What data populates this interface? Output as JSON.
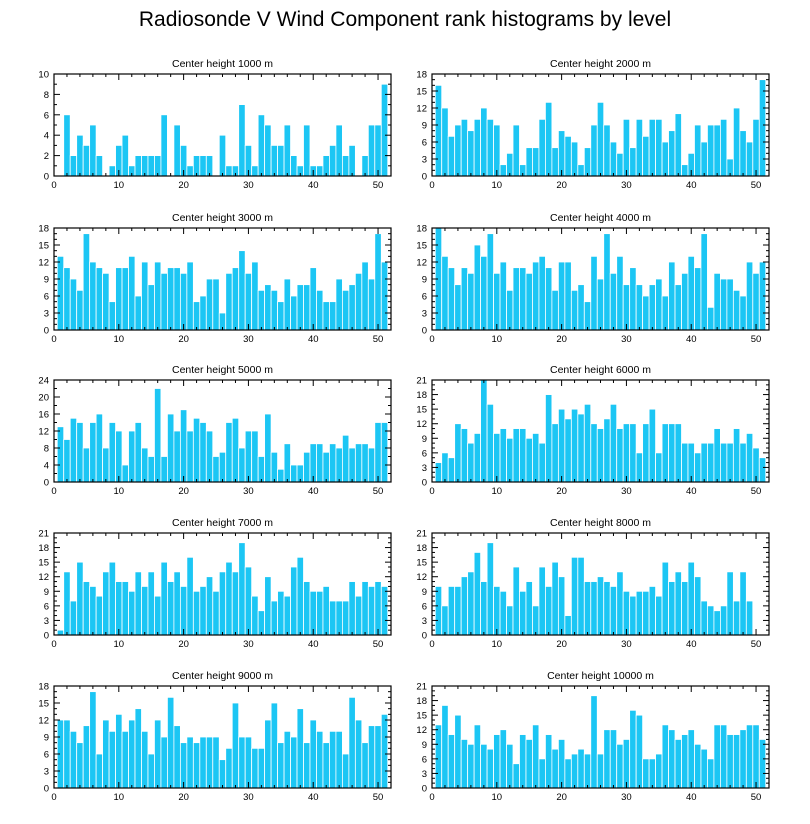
{
  "title": "Radiosonde V Wind Component rank histograms by level",
  "colors": {
    "bar": "#1cc6f4",
    "bar_stroke": "#ffffff",
    "axis": "#000000"
  },
  "chart_data": [
    {
      "type": "bar",
      "title": "Center height 1000 m",
      "xlim": [
        0,
        52
      ],
      "ylim": [
        0,
        10
      ],
      "xticks": [
        0,
        10,
        20,
        30,
        40,
        50
      ],
      "yticks": [
        0,
        2,
        4,
        6,
        8,
        10
      ],
      "values": [
        0,
        0,
        6,
        2,
        4,
        3,
        5,
        2,
        0,
        1,
        3,
        4,
        1,
        2,
        2,
        2,
        2,
        6,
        0,
        5,
        3,
        1,
        2,
        2,
        2,
        0,
        4,
        1,
        1,
        7,
        3,
        1,
        6,
        5,
        3,
        3,
        5,
        2,
        1,
        5,
        1,
        1,
        2,
        3,
        5,
        2,
        3,
        0,
        2,
        5,
        5,
        9
      ]
    },
    {
      "type": "bar",
      "title": "Center height 2000 m",
      "xlim": [
        0,
        52
      ],
      "ylim": [
        0,
        18
      ],
      "xticks": [
        0,
        10,
        20,
        30,
        40,
        50
      ],
      "yticks": [
        0,
        3,
        6,
        9,
        12,
        15,
        18
      ],
      "values": [
        0,
        16,
        12,
        7,
        9,
        10,
        8,
        10,
        12,
        10,
        9,
        2,
        4,
        9,
        2,
        5,
        5,
        10,
        13,
        5,
        8,
        7,
        6,
        2,
        5,
        9,
        13,
        9,
        6,
        4,
        10,
        5,
        10,
        7,
        10,
        10,
        6,
        8,
        11,
        2,
        4,
        9,
        6,
        9,
        9,
        10,
        3,
        12,
        8,
        6,
        10,
        17
      ]
    },
    {
      "type": "bar",
      "title": "Center height 3000 m",
      "xlim": [
        0,
        52
      ],
      "ylim": [
        0,
        18
      ],
      "xticks": [
        0,
        10,
        20,
        30,
        40,
        50
      ],
      "yticks": [
        0,
        3,
        6,
        9,
        12,
        15,
        18
      ],
      "values": [
        0,
        13,
        11,
        9,
        7,
        17,
        12,
        11,
        10,
        5,
        11,
        11,
        13,
        6,
        12,
        8,
        12,
        10,
        11,
        11,
        10,
        12,
        5,
        6,
        9,
        9,
        3,
        10,
        11,
        14,
        10,
        12,
        7,
        8,
        7,
        5,
        9,
        6,
        8,
        8,
        11,
        7,
        5,
        5,
        9,
        7,
        8,
        10,
        12,
        9,
        17,
        12
      ]
    },
    {
      "type": "bar",
      "title": "Center height 4000 m",
      "xlim": [
        0,
        52
      ],
      "ylim": [
        0,
        18
      ],
      "xticks": [
        0,
        10,
        20,
        30,
        40,
        50
      ],
      "yticks": [
        0,
        3,
        6,
        9,
        12,
        15,
        18
      ],
      "values": [
        0,
        18,
        13,
        11,
        8,
        11,
        10,
        15,
        13,
        17,
        10,
        12,
        7,
        11,
        11,
        10,
        12,
        13,
        11,
        7,
        12,
        12,
        7,
        8,
        5,
        13,
        9,
        17,
        10,
        13,
        8,
        11,
        8,
        6,
        8,
        9,
        6,
        12,
        8,
        10,
        13,
        11,
        17,
        4,
        10,
        9,
        9,
        7,
        6,
        12,
        10,
        12
      ]
    },
    {
      "type": "bar",
      "title": "Center height 5000 m",
      "xlim": [
        0,
        52
      ],
      "ylim": [
        0,
        24
      ],
      "xticks": [
        0,
        10,
        20,
        30,
        40,
        50
      ],
      "yticks": [
        0,
        4,
        8,
        12,
        16,
        20,
        24
      ],
      "values": [
        0,
        13,
        10,
        15,
        14,
        8,
        14,
        16,
        8,
        14,
        12,
        4,
        12,
        14,
        8,
        6,
        22,
        6,
        16,
        12,
        17,
        12,
        15,
        14,
        12,
        6,
        7,
        14,
        15,
        8,
        12,
        12,
        6,
        16,
        7,
        3,
        9,
        4,
        4,
        7,
        9,
        9,
        7,
        9,
        8,
        11,
        8,
        9,
        9,
        8,
        14,
        14
      ]
    },
    {
      "type": "bar",
      "title": "Center height 6000 m",
      "xlim": [
        0,
        52
      ],
      "ylim": [
        0,
        21
      ],
      "xticks": [
        0,
        10,
        20,
        30,
        40,
        50
      ],
      "yticks": [
        0,
        3,
        6,
        9,
        12,
        15,
        18,
        21
      ],
      "values": [
        0,
        4,
        6,
        5,
        12,
        11,
        8,
        10,
        21,
        16,
        10,
        11,
        9,
        11,
        11,
        9,
        10,
        8,
        18,
        12,
        15,
        13,
        15,
        14,
        16,
        12,
        11,
        13,
        16,
        11,
        12,
        12,
        6,
        12,
        15,
        6,
        12,
        12,
        12,
        8,
        8,
        6,
        8,
        8,
        11,
        8,
        8,
        11,
        8,
        10,
        7,
        5
      ]
    },
    {
      "type": "bar",
      "title": "Center height 7000 m",
      "xlim": [
        0,
        52
      ],
      "ylim": [
        0,
        21
      ],
      "xticks": [
        0,
        10,
        20,
        30,
        40,
        50
      ],
      "yticks": [
        0,
        3,
        6,
        9,
        12,
        15,
        18,
        21
      ],
      "values": [
        0,
        1,
        13,
        7,
        15,
        11,
        10,
        8,
        13,
        15,
        11,
        11,
        9,
        13,
        10,
        13,
        8,
        15,
        11,
        13,
        10,
        16,
        9,
        10,
        12,
        9,
        13,
        15,
        13,
        19,
        14,
        8,
        5,
        12,
        7,
        9,
        8,
        14,
        16,
        11,
        9,
        9,
        10,
        7,
        7,
        7,
        11,
        8,
        11,
        10,
        11,
        10
      ]
    },
    {
      "type": "bar",
      "title": "Center height 8000 m",
      "xlim": [
        0,
        52
      ],
      "ylim": [
        0,
        21
      ],
      "xticks": [
        0,
        10,
        20,
        30,
        40,
        50
      ],
      "yticks": [
        0,
        3,
        6,
        9,
        12,
        15,
        18,
        21
      ],
      "values": [
        0,
        10,
        6,
        10,
        10,
        12,
        13,
        17,
        11,
        19,
        10,
        9,
        6,
        14,
        9,
        11,
        6,
        14,
        10,
        15,
        12,
        4,
        16,
        16,
        11,
        11,
        12,
        11,
        10,
        13,
        9,
        8,
        9,
        9,
        10,
        8,
        15,
        11,
        13,
        11,
        15,
        12,
        7,
        6,
        5,
        6,
        13,
        7,
        13,
        7,
        0,
        0
      ]
    },
    {
      "type": "bar",
      "title": "Center height 9000 m",
      "xlim": [
        0,
        52
      ],
      "ylim": [
        0,
        18
      ],
      "xticks": [
        0,
        10,
        20,
        30,
        40,
        50
      ],
      "yticks": [
        0,
        3,
        6,
        9,
        12,
        15,
        18
      ],
      "values": [
        0,
        12,
        12,
        10,
        8,
        11,
        17,
        6,
        12,
        10,
        13,
        10,
        12,
        14,
        10,
        6,
        12,
        9,
        16,
        11,
        8,
        9,
        8,
        9,
        9,
        9,
        5,
        7,
        15,
        9,
        9,
        7,
        7,
        12,
        15,
        8,
        10,
        9,
        14,
        8,
        12,
        10,
        8,
        10,
        10,
        6,
        16,
        12,
        8,
        11,
        11,
        13
      ]
    },
    {
      "type": "bar",
      "title": "Center height 10000 m",
      "xlim": [
        0,
        52
      ],
      "ylim": [
        0,
        21
      ],
      "xticks": [
        0,
        10,
        20,
        30,
        40,
        50
      ],
      "yticks": [
        0,
        3,
        6,
        9,
        12,
        15,
        18,
        21
      ],
      "values": [
        0,
        13,
        17,
        11,
        15,
        10,
        9,
        13,
        9,
        8,
        11,
        12,
        9,
        5,
        11,
        10,
        13,
        6,
        11,
        8,
        10,
        6,
        7,
        8,
        7,
        19,
        7,
        12,
        12,
        9,
        10,
        16,
        15,
        6,
        6,
        7,
        13,
        12,
        10,
        11,
        12,
        9,
        8,
        6,
        13,
        13,
        11,
        11,
        12,
        13,
        13,
        10
      ]
    }
  ]
}
